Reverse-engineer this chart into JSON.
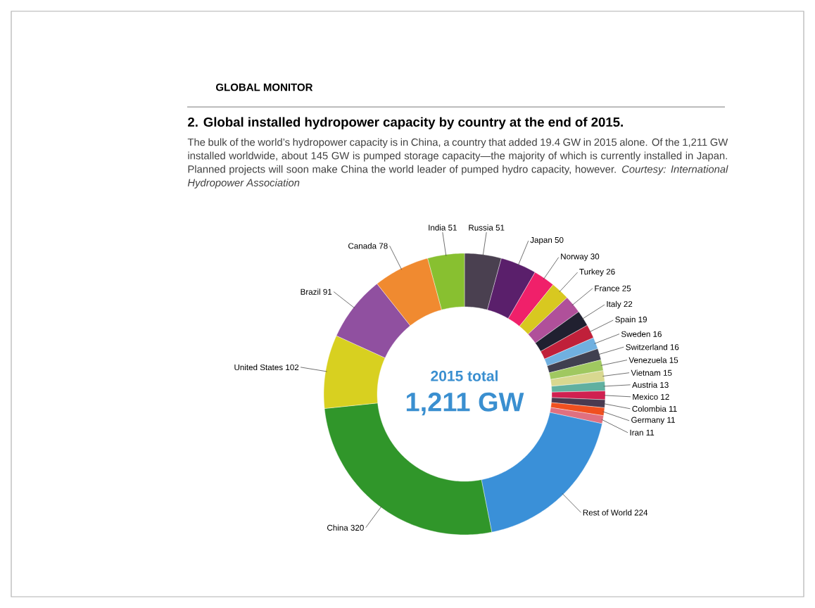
{
  "chart_data": {
    "type": "donut",
    "title": "2. Global installed hydropower capacity by country at the end of 2015.",
    "subtitle": "The bulk of the world’s hydropower capacity is in China, a country that added 19.4 GW in 2015 alone. Of the 1,211 GW installed worldwide, about 145 GW is pumped storage capacity—the majority of which is currently installed in Japan. Planned projects will soon make China the world leader of pumped hydro capacity, however. *Courtesy: International Hydropower Association*",
    "annotations": [
      "GLOBAL MONITOR",
      "2015 total",
      "1,211 GW"
    ],
    "categories": [
      "Russia",
      "Japan",
      "Norway",
      "Turkey",
      "France",
      "Italy",
      "Spain",
      "Sweden",
      "Switzerland",
      "Venezuela",
      "Vietnam",
      "Austria",
      "Mexico",
      "Colombia",
      "Germany",
      "Iran",
      "Rest of World",
      "China",
      "United States",
      "Brazil",
      "Canada",
      "India"
    ],
    "values": [
      51,
      50,
      30,
      26,
      25,
      22,
      19,
      16,
      16,
      15,
      15,
      13,
      12,
      11,
      11,
      11,
      224,
      320,
      102,
      91,
      78,
      51
    ],
    "colors": [
      "#4a4050",
      "#5a1f6b",
      "#f0206a",
      "#d8c820",
      "#b0509a",
      "#202030",
      "#c0203a",
      "#70b0e0",
      "#404050",
      "#a0c860",
      "#d8d890",
      "#60b0a0",
      "#d02050",
      "#4a3a50",
      "#f05020",
      "#e07080",
      "#3a90d8",
      "#30962a",
      "#d8d020",
      "#9050a0",
      "#f08a30",
      "#88c030"
    ],
    "data_labels": true
  }
}
